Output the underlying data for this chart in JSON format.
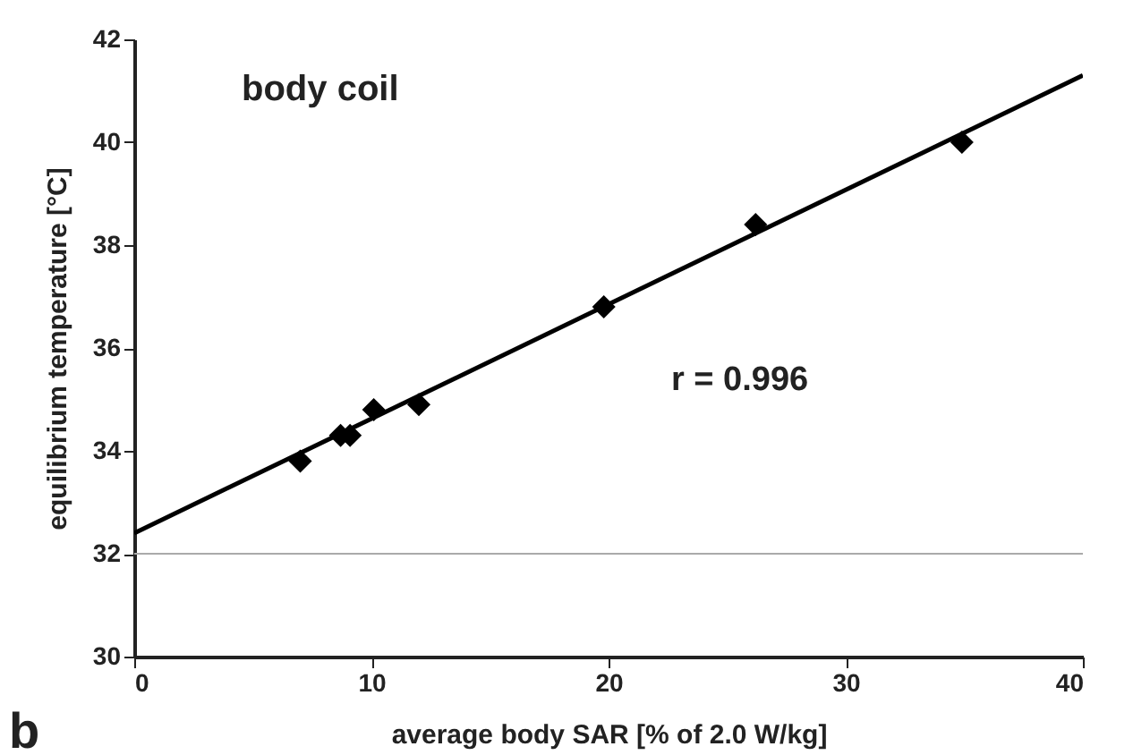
{
  "chart_data": {
    "type": "scatter",
    "xlabel": "average body SAR  [% of 2.0 W/kg]",
    "ylabel": "equilibrium temperature  [°C]",
    "annotations": [
      "body coil",
      "r = 0.996",
      "b"
    ],
    "series": [
      {
        "marker": "diamond",
        "color": "#000000",
        "x": [
          7.0,
          8.7,
          9.1,
          10.1,
          12.0,
          19.8,
          26.2,
          34.9
        ],
        "values": [
          33.8,
          34.3,
          34.3,
          34.8,
          34.9,
          36.8,
          38.4,
          40.0
        ]
      },
      {
        "type": "line",
        "marker": "none",
        "color": "#000000",
        "x": [
          0,
          40
        ],
        "values": [
          32.4,
          41.3
        ]
      }
    ],
    "ref_lines": [
      {
        "axis": "y",
        "value": 32,
        "color": "#aaaaaa"
      }
    ],
    "xlim": [
      0,
      40
    ],
    "xticks": [
      0,
      10,
      20,
      30,
      40
    ],
    "ylim": [
      30,
      42
    ],
    "yticks": [
      30,
      32,
      34,
      36,
      38,
      40,
      42
    ],
    "grid": false,
    "line_style": "solid"
  }
}
